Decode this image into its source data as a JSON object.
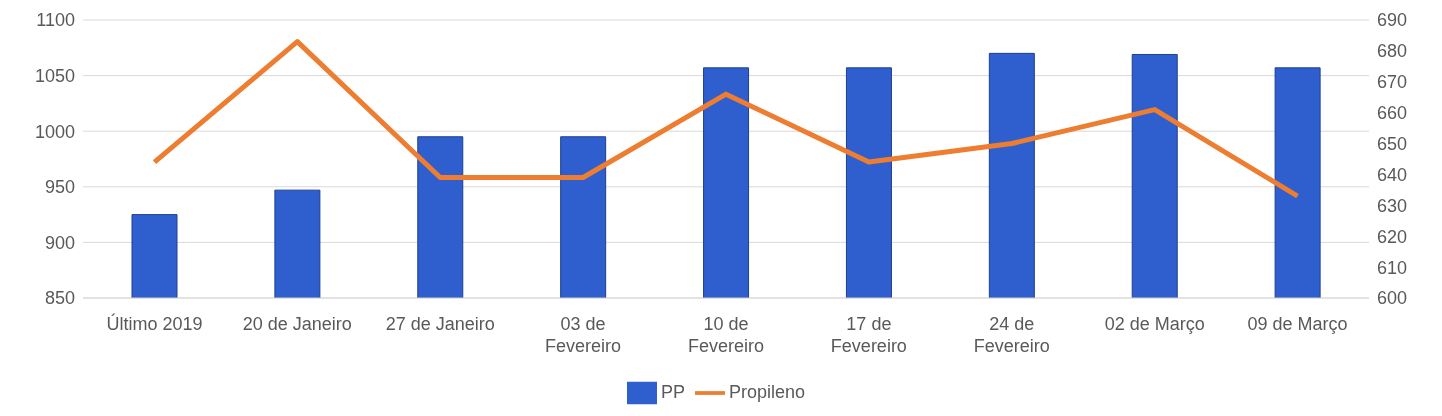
{
  "chart_data": {
    "type": "bar",
    "categories": [
      "Último 2019",
      "20 de Janeiro",
      "27 de Janeiro",
      "03 de Fevereiro",
      "10 de Fevereiro",
      "17 de Fevereiro",
      "24 de Fevereiro",
      "02 de Março",
      "09 de Março"
    ],
    "series": [
      {
        "name": "PP",
        "color": "#2f5fcf",
        "values": [
          925,
          947,
          995,
          995,
          1057,
          1057,
          1070,
          1069,
          1057
        ]
      },
      {
        "name": "Propileno",
        "type": "line",
        "axis": "y2",
        "color": "#ed7d31",
        "values": [
          644,
          683,
          639,
          639,
          666,
          644,
          650,
          661,
          633
        ]
      }
    ],
    "ylim": [
      850,
      1100
    ],
    "yticks": [
      850,
      900,
      950,
      1000,
      1050,
      1100
    ],
    "y2lim": [
      600,
      690
    ],
    "y2ticks": [
      600,
      610,
      620,
      630,
      640,
      650,
      660,
      670,
      680,
      690
    ],
    "grid": "y",
    "legend": "bottom",
    "marker": "none",
    "line_style": "solid"
  }
}
